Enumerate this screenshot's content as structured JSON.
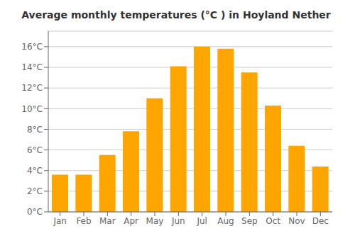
{
  "chart_data": {
    "type": "bar",
    "title": "Average monthly temperatures (°C ) in Hoyland Nether",
    "categories": [
      "Jan",
      "Feb",
      "Mar",
      "Apr",
      "May",
      "Jun",
      "Jul",
      "Aug",
      "Sep",
      "Oct",
      "Nov",
      "Dec"
    ],
    "values": [
      3.6,
      3.6,
      5.5,
      7.8,
      11.0,
      14.1,
      16.0,
      15.8,
      13.5,
      10.3,
      6.4,
      4.4
    ],
    "color": "#FFA500",
    "ylim": [
      0,
      17.5
    ],
    "yticks": [
      {
        "value": 0,
        "label": "0°C"
      },
      {
        "value": 2,
        "label": "2°C"
      },
      {
        "value": 4,
        "label": "4°C"
      },
      {
        "value": 6,
        "label": "6°C"
      },
      {
        "value": 8,
        "label": "8°C"
      },
      {
        "value": 10,
        "label": "10°C"
      },
      {
        "value": 12,
        "label": "12°C"
      },
      {
        "value": 14,
        "label": "14°C"
      },
      {
        "value": 16,
        "label": "16°C"
      }
    ],
    "grid": true
  }
}
